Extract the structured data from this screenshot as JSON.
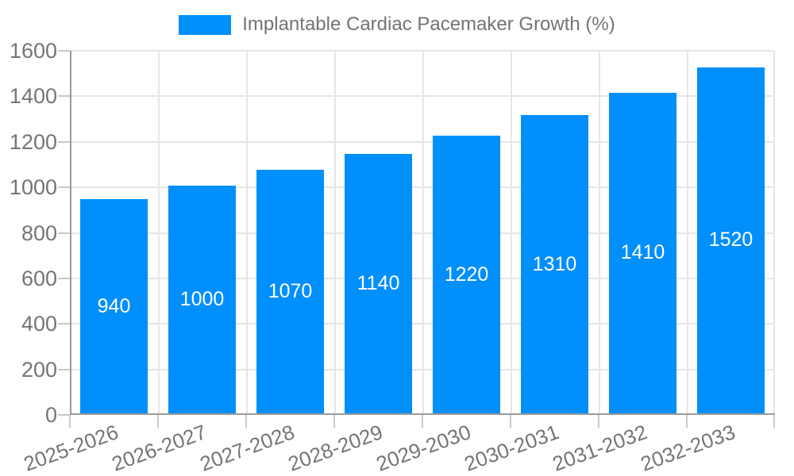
{
  "legend": {
    "label": "Implantable Cardiac Pacemaker Growth (%)"
  },
  "chart_data": {
    "type": "bar",
    "title": "Implantable Cardiac Pacemaker Growth (%)",
    "series_name": "Implantable Cardiac Pacemaker Growth (%)",
    "categories": [
      "2025-2026",
      "2026-2027",
      "2027-2028",
      "2028-2029",
      "2029-2030",
      "2030-2031",
      "2031-2032",
      "2032-2033"
    ],
    "values": [
      940,
      1000,
      1070,
      1140,
      1220,
      1310,
      1410,
      1520
    ],
    "xlabel": "",
    "ylabel": "",
    "ylim": [
      0,
      1600
    ],
    "yticks": [
      0,
      200,
      400,
      600,
      800,
      1000,
      1200,
      1400,
      1600
    ],
    "grid": true,
    "legend_position": "top",
    "colors": {
      "bar": "#008FFB",
      "bar_label": "#ffffff",
      "axis_text": "#757575",
      "legend_text": "#737373",
      "grid_line": "#e6e6e6",
      "axis_line": "#9b9b9b",
      "tick_mark": "#c9c9c9"
    }
  }
}
